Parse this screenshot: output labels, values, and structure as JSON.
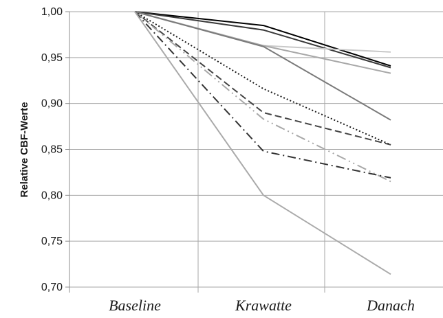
{
  "chart_data": {
    "type": "line",
    "categories": [
      "Baseline",
      "Krawatte",
      "Danach"
    ],
    "ylabel": "Relative CBF-Werte",
    "xlabel": "",
    "ylim": [
      0.7,
      1.0
    ],
    "yticks": [
      "1,00",
      "0,95",
      "0,90",
      "0,85",
      "0,80",
      "0,75",
      "0,70"
    ],
    "grid": true,
    "legend": "none",
    "series": [
      {
        "values": [
          1.0,
          0.985,
          0.941
        ],
        "color": "#000000",
        "dash": "solid"
      },
      {
        "values": [
          1.0,
          0.98,
          0.939
        ],
        "color": "#3a3a3a",
        "dash": "solid"
      },
      {
        "values": [
          1.0,
          0.963,
          0.956
        ],
        "color": "#c8c8c8",
        "dash": "solid"
      },
      {
        "values": [
          1.0,
          0.963,
          0.933
        ],
        "color": "#a8a8a8",
        "dash": "solid"
      },
      {
        "values": [
          1.0,
          0.962,
          0.882
        ],
        "color": "#7a7a7a",
        "dash": "solid"
      },
      {
        "values": [
          1.0,
          0.916,
          0.855
        ],
        "color": "#1a1a1a",
        "dash": "dotted"
      },
      {
        "values": [
          1.0,
          0.89,
          0.855
        ],
        "color": "#444444",
        "dash": "dashed"
      },
      {
        "values": [
          1.0,
          0.883,
          0.815
        ],
        "color": "#a8a8a8",
        "dash": "dashdotdot"
      },
      {
        "values": [
          1.0,
          0.848,
          0.819
        ],
        "color": "#333333",
        "dash": "dashdot"
      },
      {
        "values": [
          1.0,
          0.8,
          0.714
        ],
        "color": "#aaaaaa",
        "dash": "solid"
      }
    ]
  }
}
